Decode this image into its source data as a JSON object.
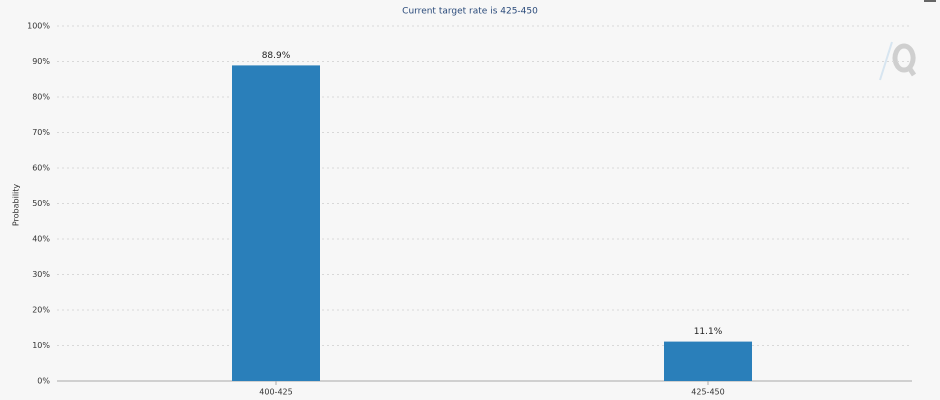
{
  "chart_data": {
    "type": "bar",
    "subtitle": "Current target rate is 425-450",
    "y_label": "Probability",
    "categories": [
      "400-425",
      "425-450"
    ],
    "values": [
      88.9,
      11.1
    ],
    "value_labels": [
      "88.9%",
      "11.1%"
    ],
    "color": "#2a7fba",
    "ylim": [
      0,
      100
    ],
    "yticks": [
      {
        "value": 0,
        "label": "0%"
      },
      {
        "value": 10,
        "label": "10%"
      },
      {
        "value": 20,
        "label": "20%"
      },
      {
        "value": 30,
        "label": "30%"
      },
      {
        "value": 40,
        "label": "40%"
      },
      {
        "value": 50,
        "label": "50%"
      },
      {
        "value": 60,
        "label": "60%"
      },
      {
        "value": 70,
        "label": "70%"
      },
      {
        "value": 80,
        "label": "80%"
      },
      {
        "value": 90,
        "label": "90%"
      },
      {
        "value": 100,
        "label": "100%"
      }
    ],
    "grid": true
  }
}
